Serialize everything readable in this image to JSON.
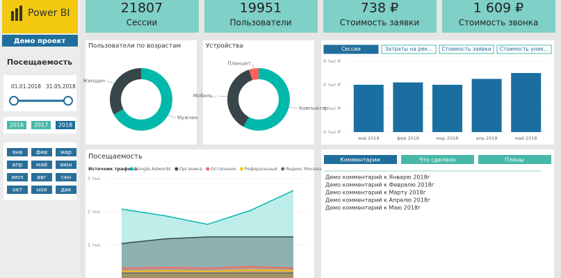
{
  "header": {
    "brand": "Power BI",
    "project": "Демо проект",
    "page_title": "Посещаемость"
  },
  "date_range": {
    "start": "01.01.2018",
    "end": "31.05.2018"
  },
  "years": [
    "2016",
    "2017",
    "2018"
  ],
  "months": [
    "янв",
    "фев",
    "мар",
    "апр",
    "май",
    "июн",
    "июл",
    "авг",
    "сен",
    "окт",
    "ноя",
    "дек"
  ],
  "kpis": [
    {
      "value": "21807",
      "label": "Сессии"
    },
    {
      "value": "19951",
      "label": "Пользователи"
    },
    {
      "value": "738 ₽",
      "label": "Стоимость заявки"
    },
    {
      "value": "1 609 ₽",
      "label": "Стоимость звонка"
    }
  ],
  "metric_buttons": [
    "Сессии",
    "Затраты на рек...",
    "Стоимость заявки",
    "Стоимость уник..."
  ],
  "comment_tabs": [
    "Комментарии",
    "Что сделано",
    "Планы"
  ],
  "comments": [
    "Демо комментарий к Январю 2018г",
    "Демо комментарий к Февралю 2018г",
    "Демо комментарий к Марту 2018г",
    "Демо комментарий к Апрелю 2018г",
    "Демо комментарий к Маю 2018г"
  ],
  "chart_data": [
    {
      "type": "donut",
      "title": "Пользователи по возрастам",
      "categories": [
        "Мужчин",
        "Женщин"
      ],
      "values": [
        67,
        33
      ],
      "colors": [
        "#01b8aa",
        "#374649"
      ]
    },
    {
      "type": "donut",
      "title": "Устройства",
      "categories": [
        "Компьютер",
        "Мобиль...",
        "Планшет"
      ],
      "values": [
        58,
        37,
        5
      ],
      "colors": [
        "#01b8aa",
        "#374649",
        "#fd625e"
      ]
    },
    {
      "type": "bar",
      "categories": [
        "янв 2018",
        "фев 2018",
        "мар 2018",
        "апр 2018",
        "май 2018"
      ],
      "values": [
        4.0,
        4.2,
        4.0,
        4.5,
        5.0
      ],
      "color": "#1a6fa0",
      "ylim": [
        0,
        6
      ],
      "yticks": [
        {
          "value": 0,
          "label": "0 тыс ₽"
        },
        {
          "value": 2,
          "label": "2 тыс ₽"
        },
        {
          "value": 4,
          "label": "4 тыс ₽"
        },
        {
          "value": 6,
          "label": "6 тыс ₽"
        }
      ],
      "grid": true
    },
    {
      "type": "area",
      "title": "Посещаемость",
      "legend_title": "Источник трафика",
      "categories": [
        null,
        null,
        null,
        null,
        null
      ],
      "series": [
        {
          "name": "Google.Adwords",
          "color": "#01b8aa",
          "values": [
            2.08,
            1.88,
            1.62,
            2.04,
            2.64
          ]
        },
        {
          "name": "Органика",
          "color": "#374649",
          "values": [
            1.04,
            1.18,
            1.24,
            1.24,
            1.24
          ]
        },
        {
          "name": "Остальное",
          "color": "#fd625e",
          "values": [
            0.3,
            0.32,
            0.3,
            0.35,
            0.3
          ]
        },
        {
          "name": "Реферальный",
          "color": "#f2c80f",
          "values": [
            0.2,
            0.22,
            0.2,
            0.25,
            0.22
          ]
        },
        {
          "name": "Яндекс Москва",
          "color": "#5f6b6d",
          "values": [
            0.15,
            0.15,
            0.15,
            0.15,
            0.15
          ]
        }
      ],
      "ylim": [
        0,
        3
      ],
      "yticks": [
        {
          "value": 1,
          "label": "1 тыс"
        },
        {
          "value": 2,
          "label": "2 тыс"
        },
        {
          "value": 3,
          "label": "3 тыс"
        }
      ],
      "grid": true
    }
  ]
}
